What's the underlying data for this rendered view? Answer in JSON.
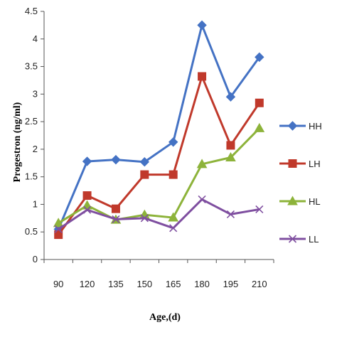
{
  "chart_data": {
    "type": "line",
    "title": "",
    "xlabel": "Age,(d)",
    "ylabel": "Progestron (ng/ml)",
    "categories": [
      "90",
      "120",
      "135",
      "150",
      "165",
      "180",
      "195",
      "210"
    ],
    "ylim": [
      0,
      4.5
    ],
    "yticks": [
      "0",
      "0.5",
      "1",
      "1.5",
      "2",
      "2.5",
      "3",
      "3.5",
      "4",
      "4.5"
    ],
    "grid": false,
    "legend_position": "right",
    "series": [
      {
        "name": "HH",
        "color": "#4472C4",
        "marker": "diamond",
        "values": [
          0.55,
          1.78,
          1.81,
          1.77,
          2.13,
          4.25,
          2.95,
          3.67
        ]
      },
      {
        "name": "LH",
        "color": "#C0392B",
        "marker": "square",
        "values": [
          0.45,
          1.16,
          0.92,
          1.54,
          1.54,
          3.32,
          2.07,
          2.84
        ]
      },
      {
        "name": "HL",
        "color": "#8DB33A",
        "marker": "triangle",
        "values": [
          0.66,
          0.98,
          0.72,
          0.81,
          0.76,
          1.73,
          1.85,
          2.38
        ]
      },
      {
        "name": "LL",
        "color": "#7F4FA0",
        "marker": "x",
        "values": [
          0.55,
          0.9,
          0.73,
          0.75,
          0.57,
          1.09,
          0.82,
          0.91
        ]
      }
    ]
  }
}
